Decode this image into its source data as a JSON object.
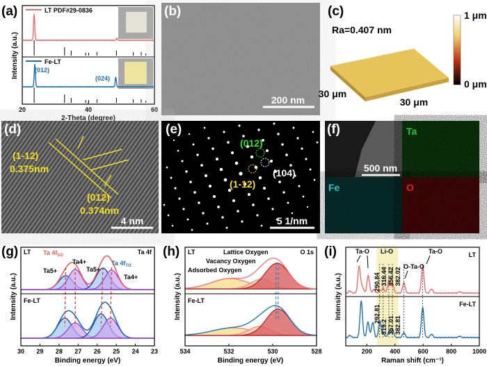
{
  "panel_labels": [
    "(a)",
    "(b)",
    "(c)",
    "(d)",
    "(e)",
    "(f)",
    "(g)",
    "(h)",
    "(i)"
  ],
  "chart_data": [
    {
      "id": "a",
      "type": "line",
      "xlabel": "2-Theta (degree)",
      "ylabel": "Intensity (a.u.)",
      "xlim": [
        20,
        60
      ],
      "xticks": [
        20,
        40,
        60
      ],
      "series": [
        {
          "name": "LT PDF#29-0836",
          "color": "#f06a6a",
          "peaks": [
            {
              "x": 23.6,
              "h": 38
            },
            {
              "x": 48.6,
              "h": 3
            }
          ]
        },
        {
          "name": "Fe-LT",
          "color": "#1f6fb0",
          "peaks": [
            {
              "x": 23.8,
              "h": 33
            },
            {
              "x": 48.3,
              "h": 14
            }
          ],
          "annotations": [
            {
              "text": "(012)",
              "x": 23.8
            },
            {
              "text": "(024)",
              "x": 48.3
            }
          ]
        }
      ],
      "reference_sticks": [
        {
          "x": 23.6,
          "h": 22
        },
        {
          "x": 32.8,
          "h": 12
        },
        {
          "x": 34.8,
          "h": 7
        },
        {
          "x": 39.2,
          "h": 4
        },
        {
          "x": 40.1,
          "h": 4
        },
        {
          "x": 42.6,
          "h": 5
        },
        {
          "x": 48.5,
          "h": 7
        },
        {
          "x": 53.6,
          "h": 5
        },
        {
          "x": 56.0,
          "h": 5
        },
        {
          "x": 57.4,
          "h": 3
        }
      ]
    },
    {
      "id": "g",
      "type": "line",
      "title": "Ta 4f",
      "xlabel": "Binding energy (eV)",
      "ylabel": "Intensity (a.u.)",
      "xlim": [
        30,
        23
      ],
      "xticks": [
        30,
        29,
        28,
        27,
        26,
        25,
        24,
        23
      ],
      "legend": [
        "Ta 4f5/2",
        "Ta 4f7/2"
      ],
      "series": [
        {
          "name": "LT",
          "envelope_color": "#f25a5a",
          "components": [
            {
              "label": "Ta5+",
              "x": 27.65,
              "amp": 20,
              "sigma": 0.36
            },
            {
              "label": "Ta4+",
              "x": 27.15,
              "amp": 29,
              "sigma": 0.36
            },
            {
              "label": "Ta5+",
              "x": 25.7,
              "amp": 31,
              "sigma": 0.36
            },
            {
              "label": "Ta4+",
              "x": 25.25,
              "amp": 28,
              "sigma": 0.36
            }
          ]
        },
        {
          "name": "Fe-LT",
          "envelope_color": "#1f6fb0",
          "components": [
            {
              "label": "Ta5+",
              "x": 27.7,
              "amp": 29,
              "sigma": 0.38
            },
            {
              "label": "Ta4+",
              "x": 27.15,
              "amp": 22,
              "sigma": 0.38
            },
            {
              "label": "Ta5+",
              "x": 25.8,
              "amp": 35,
              "sigma": 0.38
            },
            {
              "label": "Ta4+",
              "x": 25.3,
              "amp": 29,
              "sigma": 0.38
            }
          ]
        }
      ]
    },
    {
      "id": "h",
      "type": "area",
      "title": "O 1s",
      "xlabel": "Binding energy (eV)",
      "ylabel": "Intensity (a.u.)",
      "xlim": [
        534,
        528
      ],
      "xticks": [
        534,
        532,
        530,
        528
      ],
      "component_labels": [
        "Lattice Oxygen",
        "Vacancy Oxygen",
        "Adsorbed Oxygen"
      ],
      "series": [
        {
          "name": "LT",
          "envelope_color": "#f27a7a",
          "components": [
            {
              "label": "Adsorbed Oxygen",
              "x": 531.95,
              "amp": 15,
              "sigma": 0.85
            },
            {
              "label": "Vacancy Oxygen",
              "x": 530.5,
              "amp": 14,
              "sigma": 0.5
            },
            {
              "label": "Lattice Oxygen",
              "x": 529.8,
              "amp": 37,
              "sigma": 0.55
            }
          ]
        },
        {
          "name": "Fe-LT",
          "envelope_color": "#1f78b4",
          "components": [
            {
              "label": "Adsorbed Oxygen",
              "x": 531.8,
              "amp": 11,
              "sigma": 0.95
            },
            {
              "label": "Vacancy Oxygen",
              "x": 530.6,
              "amp": 13,
              "sigma": 0.5
            },
            {
              "label": "Lattice Oxygen",
              "x": 529.75,
              "amp": 38,
              "sigma": 0.55
            }
          ]
        }
      ]
    },
    {
      "id": "i",
      "type": "line",
      "xlabel": "Raman shift (cm⁻¹)",
      "ylabel": "Intensity (a.u.)",
      "xlim": [
        50,
        1000
      ],
      "xticks": [
        200,
        400,
        600,
        800,
        1000
      ],
      "highlight_range": [
        270,
        424
      ],
      "mode_labels": [
        "Ta-O",
        "Li-O",
        "O-Ta-O",
        "Ta-O"
      ],
      "series": [
        {
          "name": "LT",
          "color": "#f06a6a",
          "peaks": [
            {
              "x": 80,
              "h": 3
            },
            {
              "x": 145,
              "h": 39
            },
            {
              "x": 168,
              "h": 9
            },
            {
              "x": 210,
              "h": 25
            },
            {
              "x": 250,
              "h": 5
            },
            {
              "x": 291,
              "h": 3
            },
            {
              "x": 316,
              "h": 7
            },
            {
              "x": 356,
              "h": 17
            },
            {
              "x": 382,
              "h": 15
            },
            {
              "x": 463,
              "h": 15
            },
            {
              "x": 597,
              "h": 39
            },
            {
              "x": 660,
              "h": 6
            },
            {
              "x": 860,
              "h": 2
            }
          ],
          "peak_labels": [
            "290.84",
            "316.44",
            "356.42",
            "382.02"
          ]
        },
        {
          "name": "Fe-LT",
          "color": "#1f6fb0",
          "peaks": [
            {
              "x": 80,
              "h": 3
            },
            {
              "x": 160,
              "h": 52
            },
            {
              "x": 208,
              "h": 22
            },
            {
              "x": 242,
              "h": 22
            },
            {
              "x": 293,
              "h": 23
            },
            {
              "x": 319,
              "h": 5
            },
            {
              "x": 357,
              "h": 8
            },
            {
              "x": 383,
              "h": 12
            },
            {
              "x": 463,
              "h": 7
            },
            {
              "x": 597,
              "h": 43
            },
            {
              "x": 660,
              "h": 5
            },
            {
              "x": 860,
              "h": 2
            }
          ],
          "peak_labels": [
            "292.81",
            "319.2",
            "357.01",
            "382.81"
          ]
        }
      ]
    }
  ],
  "sem": {
    "scale": "200 nm"
  },
  "afm": {
    "ra": "Ra=0.407 nm",
    "x_size": "30 μm",
    "y_size": "30 μm",
    "cbar_max": "1 μm",
    "cbar_min": "0 μm"
  },
  "tem": {
    "plane1": "(1-12)",
    "d1": "0.375nm",
    "plane2": "(012)",
    "d2": "0.374nm",
    "scale": "4 nm"
  },
  "saed": {
    "spot1": "(012)",
    "spot2": "(1-12)",
    "spot3": "(104)",
    "scale": "5 1/nm"
  },
  "eds": {
    "scale": "500 nm",
    "ta": "Ta",
    "fe": "Fe",
    "o": "O",
    "colors": {
      "ta": "#22c83a",
      "fe": "#20c8c8",
      "o": "#e02020"
    }
  }
}
